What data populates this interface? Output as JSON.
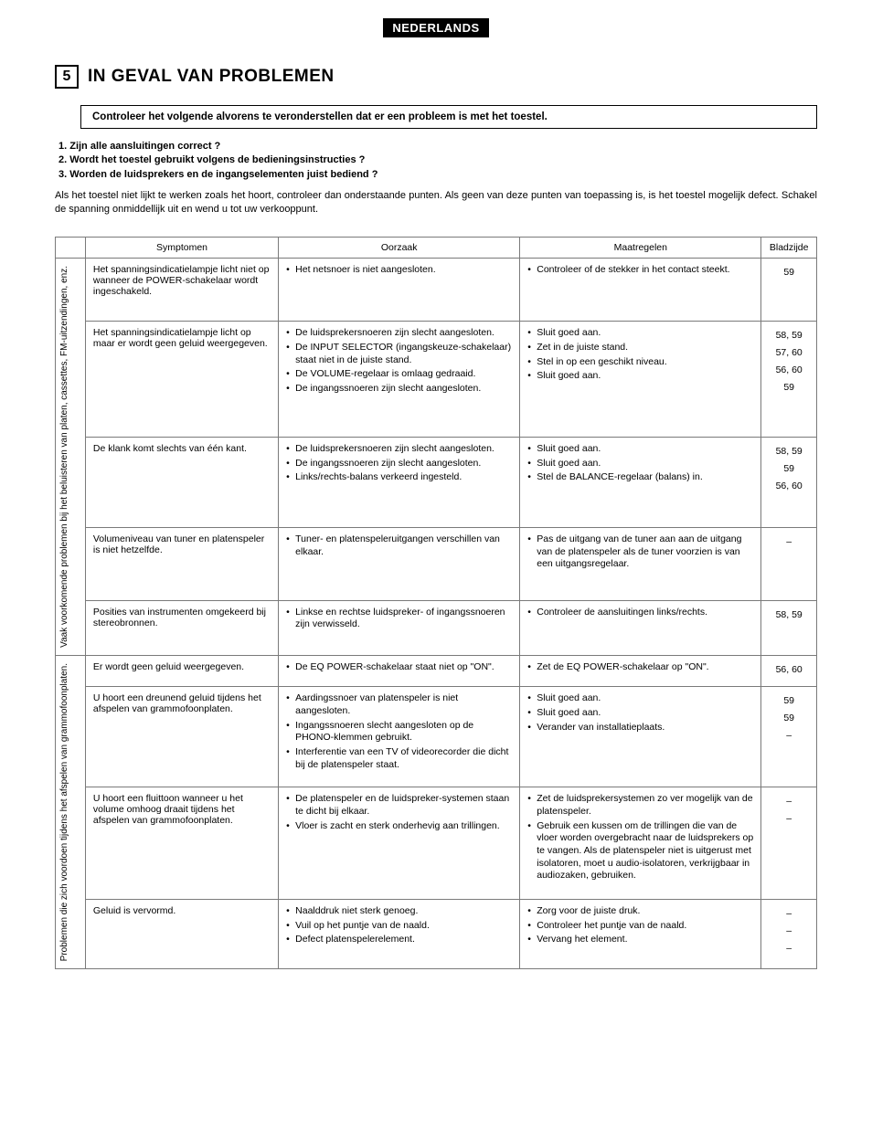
{
  "lang_badge": "NEDERLANDS",
  "section_number": "5",
  "section_title": "IN GEVAL VAN PROBLEMEN",
  "check_heading": "Controleer het volgende alvorens te veronderstellen dat er een probleem is met het toestel.",
  "questions": {
    "q1": "1.  Zijn alle aansluitingen correct ?",
    "q2": "2.  Wordt het toestel gebruikt volgens de bedieningsinstructies ?",
    "q3": "3.  Worden de luidsprekers en de ingangselementen juist bediend ?"
  },
  "intro": "Als het toestel niet lijkt te werken zoals het hoort, controleer dan onderstaande punten. Als geen van deze punten van toepassing is, is het toestel mogelijk defect. Schakel de spanning onmiddellijk uit en wend u tot uw verkooppunt.",
  "headers": {
    "symptom": "Symptomen",
    "cause": "Oorzaak",
    "measure": "Maatregelen",
    "page": "Bladzijde"
  },
  "group1_label": "Vaak voorkomende problemen bij het beluisteren van platen, cassettes, FM-uitzendingen, enz.",
  "group2_label": "Problemen die zich voordoen tijdens het afspelen van grammofoonplaten.",
  "rows": {
    "r1": {
      "symptom": "Het spanningsindicatielampje licht niet op wanneer de POWER-schakelaar wordt ingeschakeld.",
      "cause1": "Het netsnoer is niet aangesloten.",
      "measure1": "Controleer of de stekker in het contact steekt.",
      "page1": "59"
    },
    "r2": {
      "symptom": "Het spanningsindicatielampje licht op maar er wordt geen geluid weergegeven.",
      "cause1": "De luidsprekersnoeren zijn slecht aangesloten.",
      "cause2": "De INPUT SELECTOR (ingangskeuze-schakelaar) staat niet in de juiste stand.",
      "cause3": "De VOLUME-regelaar is omlaag gedraaid.",
      "cause4": "De ingangssnoeren zijn slecht aangesloten.",
      "measure1": "Sluit goed aan.",
      "measure2": "Zet in de juiste stand.",
      "measure3": "Stel in op een geschikt niveau.",
      "measure4": "Sluit goed aan.",
      "page1": "58, 59",
      "page2": "57, 60",
      "page3": "56, 60",
      "page4": "59"
    },
    "r3": {
      "symptom": "De klank komt slechts van één kant.",
      "cause1": "De luidsprekersnoeren zijn slecht aangesloten.",
      "cause2": "De ingangssnoeren zijn slecht aangesloten.",
      "cause3": "Links/rechts-balans verkeerd ingesteld.",
      "measure1": "Sluit goed aan.",
      "measure2": "Sluit goed aan.",
      "measure3": "Stel de BALANCE-regelaar (balans) in.",
      "page1": "58, 59",
      "page2": "59",
      "page3": "56, 60"
    },
    "r4": {
      "symptom": "Volumeniveau van tuner en platenspeler is niet hetzelfde.",
      "cause1": "Tuner- en platenspeleruitgangen verschillen van elkaar.",
      "measure1": "Pas de uitgang van de tuner aan aan de uitgang van de platenspeler als de tuner voorzien is van een uitgangsregelaar.",
      "page1": "–"
    },
    "r5": {
      "symptom": "Posities van instrumenten omgekeerd bij stereobronnen.",
      "cause1": "Linkse en rechtse luidspreker- of ingangssnoeren zijn verwisseld.",
      "measure1": "Controleer de aansluitingen links/rechts.",
      "page1": "58, 59"
    },
    "r6": {
      "symptom": "Er wordt geen geluid weergegeven.",
      "cause1": "De EQ POWER-schakelaar staat niet op \"ON\".",
      "measure1": "Zet de EQ POWER-schakelaar op \"ON\".",
      "page1": "56, 60"
    },
    "r7": {
      "symptom": "U hoort een dreunend geluid tijdens het afspelen van grammofoonplaten.",
      "cause1": "Aardingssnoer van platenspeler is niet aangesloten.",
      "cause2": "Ingangssnoeren slecht aangesloten op de PHONO-klemmen gebruikt.",
      "cause3": "Interferentie van een TV of videorecorder die dicht bij de platenspeler staat.",
      "measure1": "Sluit goed aan.",
      "measure2": "Sluit goed aan.",
      "measure3": "Verander van installatieplaats.",
      "page1": "59",
      "page2": "59",
      "page3": "–"
    },
    "r8": {
      "symptom": "U hoort een fluittoon wanneer u het volume omhoog draait tijdens het afspelen van grammofoonplaten.",
      "cause1": "De platenspeler en de luidspreker-systemen staan te dicht bij elkaar.",
      "cause2": "Vloer is zacht en sterk onderhevig aan trillingen.",
      "measure1": "Zet de luidsprekersystemen zo ver mogelijk van de platenspeler.",
      "measure2": "Gebruik een kussen om de trillingen die van de vloer worden overgebracht naar de luidsprekers op te vangen. Als de platenspeler niet is uitgerust met isolatoren, moet u audio-isolatoren, verkrijgbaar in audiozaken, gebruiken.",
      "page1": "–",
      "page2": "–"
    },
    "r9": {
      "symptom": "Geluid is vervormd.",
      "cause1": "Naalddruk niet sterk genoeg.",
      "cause2": "Vuil op het puntje van de naald.",
      "cause3": "Defect platenspelerelement.",
      "measure1": "Zorg voor de juiste druk.",
      "measure2": "Controleer het puntje van de naald.",
      "measure3": "Vervang het element.",
      "page1": "–",
      "page2": "–",
      "page3": "–"
    }
  }
}
